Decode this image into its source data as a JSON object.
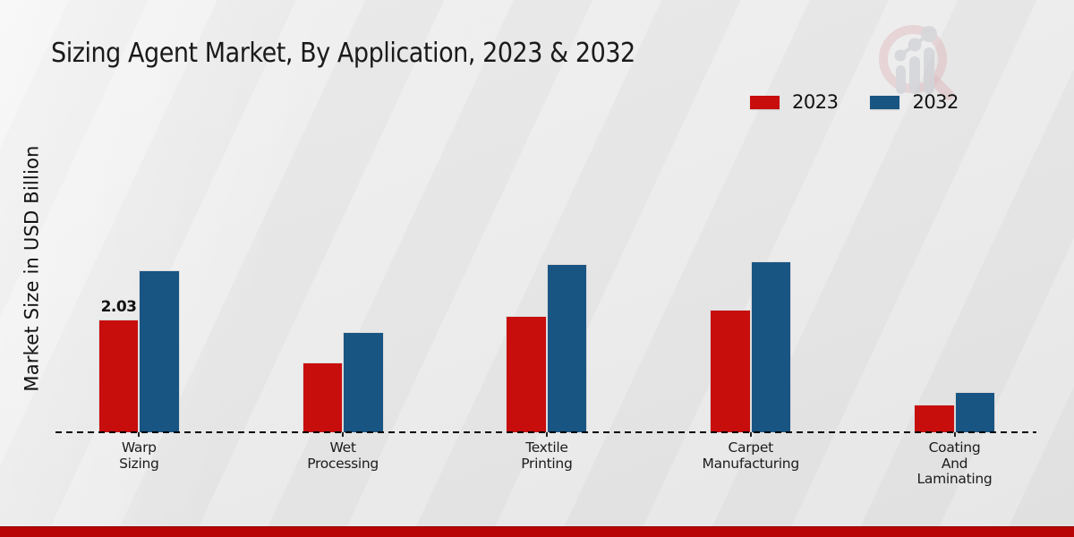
{
  "title": "Sizing Agent Market, By Application, 2023 & 2032",
  "watermark": "bar-chart-magnifier-logo",
  "legend": {
    "position": "top-right"
  },
  "bottom_band_color": "#b80404",
  "chart_data": {
    "type": "bar",
    "title": "Sizing Agent Market, By Application, 2023 & 2032",
    "xlabel": "",
    "ylabel": "Market Size in USD Billion",
    "categories": [
      "Warp Sizing",
      "Wet Processing",
      "Textile Printing",
      "Carpet Manufacturing",
      "Coating And Laminating"
    ],
    "categories_lines": [
      [
        "Warp",
        "Sizing"
      ],
      [
        "Wet",
        "Processing"
      ],
      [
        "Textile",
        "Printing"
      ],
      [
        "Carpet",
        "Manufacturing"
      ],
      [
        "Coating",
        "And",
        "Laminating"
      ]
    ],
    "series": [
      {
        "name": "2023",
        "color": "#c80d0d",
        "values": [
          2.03,
          1.26,
          2.1,
          2.22,
          0.5
        ]
      },
      {
        "name": "2032",
        "color": "#195583",
        "values": [
          2.92,
          1.81,
          3.03,
          3.08,
          0.72
        ]
      }
    ],
    "data_labels": [
      {
        "series_index": 0,
        "category_index": 0,
        "text": "2.03"
      }
    ],
    "ylim": [
      0,
      3.5
    ],
    "grid": false,
    "baseline": "dashed",
    "legend_position": "top-right"
  }
}
